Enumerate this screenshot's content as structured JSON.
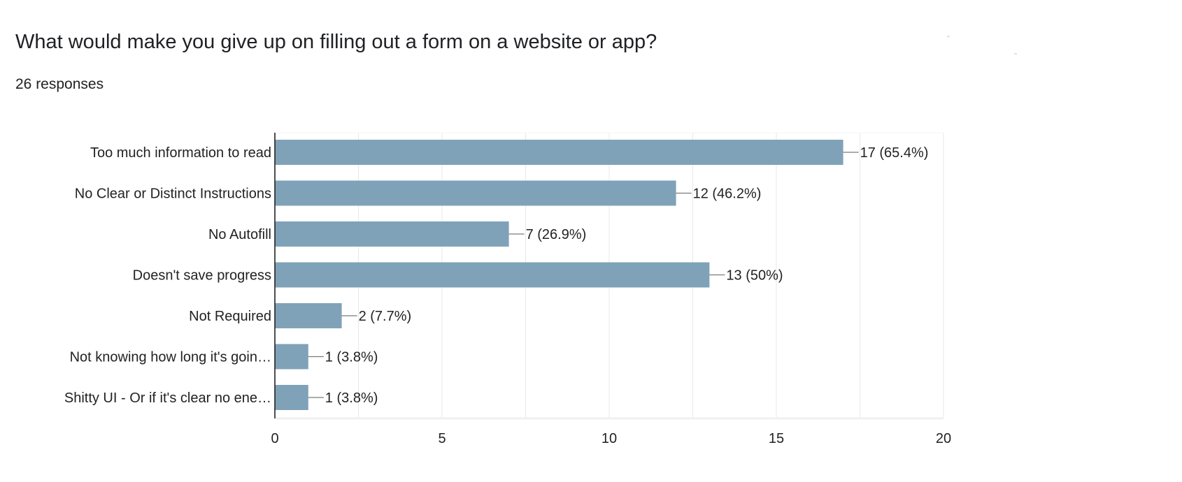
{
  "question": {
    "title": "What would make you give up on filling out a form on a website or app?",
    "responses": "26 responses"
  },
  "colors": {
    "bar": "#7fa2b8",
    "grid": "#e8e8e8",
    "axis": "#222222",
    "leader": "#7a7a7a"
  },
  "chart_data": {
    "type": "bar",
    "orientation": "horizontal",
    "categories": [
      "Too much information to read",
      "No Clear or Distinct Instructions",
      "No Autofill",
      "Doesn't save progress",
      "Not Required",
      "Not knowing how long it's goin…",
      "Shitty UI - Or if it's clear no ene…"
    ],
    "values": [
      17,
      12,
      7,
      13,
      2,
      1,
      1
    ],
    "value_labels": [
      "17 (65.4%)",
      "12 (46.2%)",
      "7 (26.9%)",
      "13 (50%)",
      "2 (7.7%)",
      "1 (3.8%)",
      "1 (3.8%)"
    ],
    "xlim": [
      0,
      20
    ],
    "xticks": [
      "0",
      "5",
      "10",
      "15",
      "20"
    ],
    "xtick_values": [
      0,
      5,
      10,
      15,
      20
    ],
    "minor_grid_step": 2.5,
    "grid": true,
    "legend": "none",
    "title": "",
    "xlabel": "",
    "ylabel": ""
  }
}
